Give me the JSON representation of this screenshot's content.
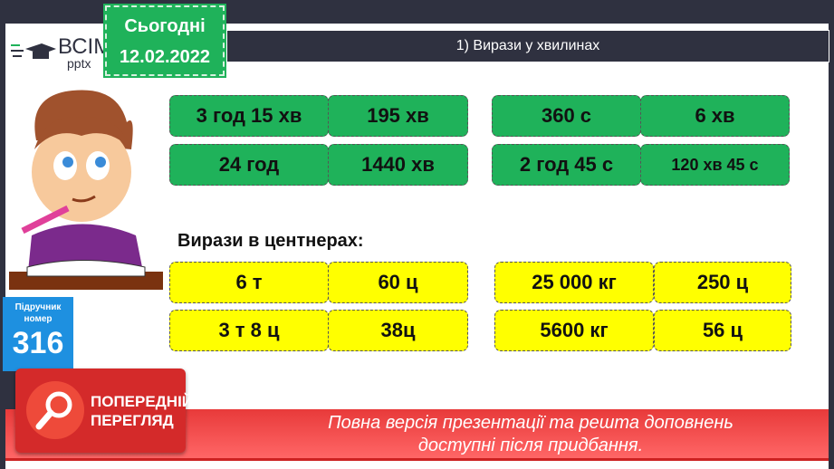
{
  "header": {
    "title": "1) Вирази у хвилинах",
    "today_label": "Сьогодні",
    "date": "12.02.2022",
    "logo_main": "ВСІМ",
    "logo_sub": "pptx"
  },
  "minutes": {
    "left": [
      [
        "3 год 15 хв",
        "195 хв"
      ],
      [
        "24 год",
        "1440 хв"
      ]
    ],
    "right": [
      [
        "360 с",
        "6 хв"
      ],
      [
        "2 год 45 с",
        "120 хв 45 с"
      ]
    ]
  },
  "centners": {
    "heading": "Вирази в центнерах:",
    "left": [
      [
        "6 т",
        "60 ц"
      ],
      [
        "3 т 8 ц",
        "38ц"
      ]
    ],
    "right": [
      [
        "25 000 кг",
        "250 ц"
      ],
      [
        "5600 кг",
        "56 ц"
      ]
    ]
  },
  "textbook": {
    "label1": "Підручник",
    "label2": "номер",
    "number": "316"
  },
  "preview": {
    "line1": "ПОПЕРЕДНІЙ",
    "line2": "ПЕРЕГЛЯД"
  },
  "banner": {
    "line1": "Повна версія презентації та решта доповнень",
    "line2": "доступні після придбання."
  },
  "colors": {
    "green": "#1fb25a",
    "yellow": "#ffff00",
    "dark": "#2f3140",
    "blue": "#1e90e0",
    "red": "#d42a2a"
  }
}
